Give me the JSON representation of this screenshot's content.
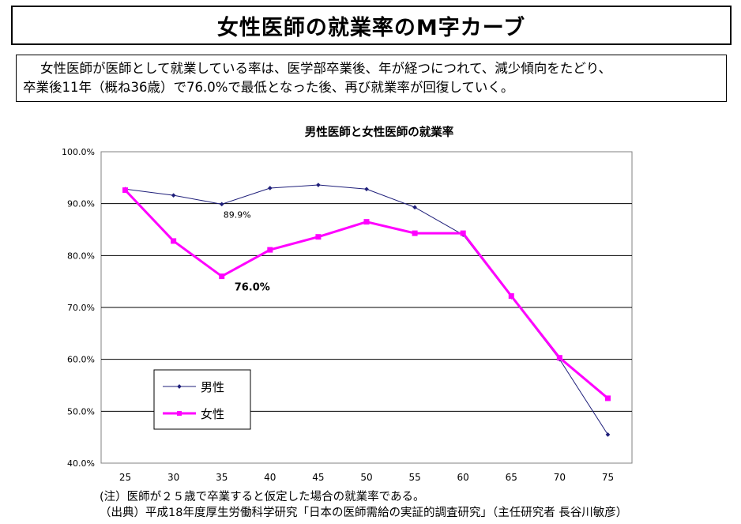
{
  "page": {
    "heading": "女性医師の就業率のM字カーブ",
    "summary_line1": "女性医師が医師として就業している率は、医学部卒業後、年が経つにつれて、減少傾向をたどり、",
    "summary_line2": "卒業後11年（概ね36歳）で76.0%で最低となった後、再び就業率が回復していく。",
    "note": "(注）医師が２５歳で卒業すると仮定した場合の就業率である。",
    "source": "（出典）平成18年度厚生労働科学研究「日本の医師需給の実証的調査研究」（主任研究者 長谷川敏彦）"
  },
  "chart_data": {
    "type": "line",
    "title": "男性医師と女性医師の就業率",
    "xlabel": "",
    "ylabel": "",
    "x": [
      25,
      30,
      35,
      40,
      45,
      50,
      55,
      60,
      65,
      70,
      75
    ],
    "ylim": [
      40,
      100
    ],
    "yticks": [
      40,
      50,
      60,
      70,
      80,
      90,
      100
    ],
    "ytick_labels": [
      "40.0%",
      "50.0%",
      "60.0%",
      "70.0%",
      "80.0%",
      "90.0%",
      "100.0%"
    ],
    "grid": true,
    "legend": "bottom-left",
    "series": [
      {
        "name": "男性",
        "color": "#1f1f7a",
        "values": [
          92.8,
          91.6,
          89.9,
          93.0,
          93.6,
          92.8,
          89.3,
          84.0,
          72.0,
          60.0,
          45.5
        ]
      },
      {
        "name": "女性",
        "color": "#ff00ff",
        "values": [
          92.6,
          82.8,
          76.0,
          81.1,
          83.6,
          86.5,
          84.3,
          84.3,
          72.2,
          60.3,
          52.5
        ]
      }
    ],
    "annotations": [
      {
        "series": 0,
        "index": 2,
        "text": "89.9%"
      },
      {
        "series": 1,
        "index": 2,
        "text": "76.0%"
      }
    ]
  }
}
